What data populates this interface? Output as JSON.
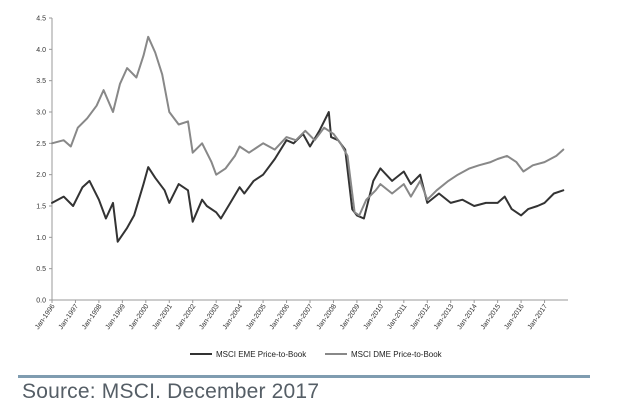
{
  "chart_data": {
    "type": "line",
    "title": "",
    "xlabel": "",
    "ylabel": "",
    "ylim": [
      0,
      4.5
    ],
    "y_ticks": [
      "0.0",
      "0.5",
      "1.0",
      "1.5",
      "2.0",
      "2.5",
      "3.0",
      "3.5",
      "4.0",
      "4.5"
    ],
    "x_ticks": [
      "Jan-1996",
      "Jan-1997",
      "Jan-1998",
      "Jan-1999",
      "Jan-2000",
      "Jan-2001",
      "Jan-2002",
      "Jan-2003",
      "Jan-2004",
      "Jan-2005",
      "Jan-2006",
      "Jan-2007",
      "Jan-2008",
      "Jan-2009",
      "Jan-2010",
      "Jan-2011",
      "Jan-2012",
      "Jan-2013",
      "Jan-2014",
      "Jan-2015",
      "Jan-2016",
      "Jan-2017"
    ],
    "grid": false,
    "legend_position": "bottom",
    "series": [
      {
        "name": "MSCI EME Price-to-Book",
        "color": "#333333",
        "x": [
          1996.0,
          1996.5,
          1996.9,
          1997.3,
          1997.6,
          1998.0,
          1998.3,
          1998.6,
          1998.8,
          1999.2,
          1999.5,
          1999.9,
          2000.1,
          2000.4,
          2000.8,
          2001.0,
          2001.4,
          2001.8,
          2002.0,
          2002.4,
          2002.6,
          2003.0,
          2003.2,
          2003.6,
          2004.0,
          2004.2,
          2004.6,
          2005.0,
          2005.5,
          2006.0,
          2006.3,
          2006.7,
          2007.0,
          2007.4,
          2007.8,
          2007.9,
          2008.2,
          2008.5,
          2008.8,
          2009.0,
          2009.3,
          2009.7,
          2010.0,
          2010.5,
          2011.0,
          2011.3,
          2011.7,
          2012.0,
          2012.5,
          2013.0,
          2013.5,
          2014.0,
          2014.5,
          2015.0,
          2015.3,
          2015.6,
          2016.0,
          2016.3,
          2016.7,
          2017.0,
          2017.4,
          2017.8
        ],
        "y": [
          1.55,
          1.65,
          1.5,
          1.8,
          1.9,
          1.6,
          1.3,
          1.55,
          0.93,
          1.15,
          1.35,
          1.85,
          2.12,
          1.95,
          1.75,
          1.55,
          1.85,
          1.75,
          1.25,
          1.6,
          1.5,
          1.4,
          1.3,
          1.55,
          1.8,
          1.7,
          1.9,
          2.0,
          2.25,
          2.55,
          2.5,
          2.65,
          2.45,
          2.7,
          3.0,
          2.6,
          2.55,
          2.4,
          1.45,
          1.35,
          1.3,
          1.9,
          2.1,
          1.9,
          2.05,
          1.85,
          2.0,
          1.55,
          1.7,
          1.55,
          1.6,
          1.5,
          1.55,
          1.55,
          1.65,
          1.45,
          1.35,
          1.45,
          1.5,
          1.55,
          1.7,
          1.75
        ]
      },
      {
        "name": "MSCI DME Price-to-Book",
        "color": "#888888",
        "x": [
          1996.0,
          1996.5,
          1996.8,
          1997.1,
          1997.5,
          1997.9,
          1998.2,
          1998.6,
          1998.9,
          1999.2,
          1999.6,
          1999.9,
          2000.1,
          2000.4,
          2000.7,
          2001.0,
          2001.4,
          2001.8,
          2002.0,
          2002.4,
          2002.8,
          2003.0,
          2003.4,
          2003.8,
          2004.0,
          2004.4,
          2005.0,
          2005.5,
          2006.0,
          2006.4,
          2006.8,
          2007.2,
          2007.6,
          2008.0,
          2008.3,
          2008.6,
          2008.9,
          2009.1,
          2009.4,
          2009.8,
          2010.0,
          2010.5,
          2011.0,
          2011.3,
          2011.7,
          2012.0,
          2012.4,
          2012.9,
          2013.3,
          2013.8,
          2014.2,
          2014.7,
          2015.0,
          2015.4,
          2015.8,
          2016.1,
          2016.5,
          2017.0,
          2017.5,
          2017.8
        ],
        "y": [
          2.5,
          2.55,
          2.45,
          2.75,
          2.9,
          3.1,
          3.35,
          3.0,
          3.45,
          3.7,
          3.55,
          3.9,
          4.2,
          3.95,
          3.6,
          3.0,
          2.8,
          2.85,
          2.35,
          2.5,
          2.2,
          2.0,
          2.1,
          2.3,
          2.45,
          2.35,
          2.5,
          2.4,
          2.6,
          2.55,
          2.7,
          2.55,
          2.75,
          2.65,
          2.5,
          2.3,
          1.4,
          1.35,
          1.6,
          1.75,
          1.85,
          1.7,
          1.85,
          1.65,
          1.9,
          1.6,
          1.75,
          1.9,
          2.0,
          2.1,
          2.15,
          2.2,
          2.25,
          2.3,
          2.2,
          2.05,
          2.15,
          2.2,
          2.3,
          2.4
        ]
      }
    ]
  },
  "footer": {
    "source": "Source: MSCI. December 2017"
  }
}
